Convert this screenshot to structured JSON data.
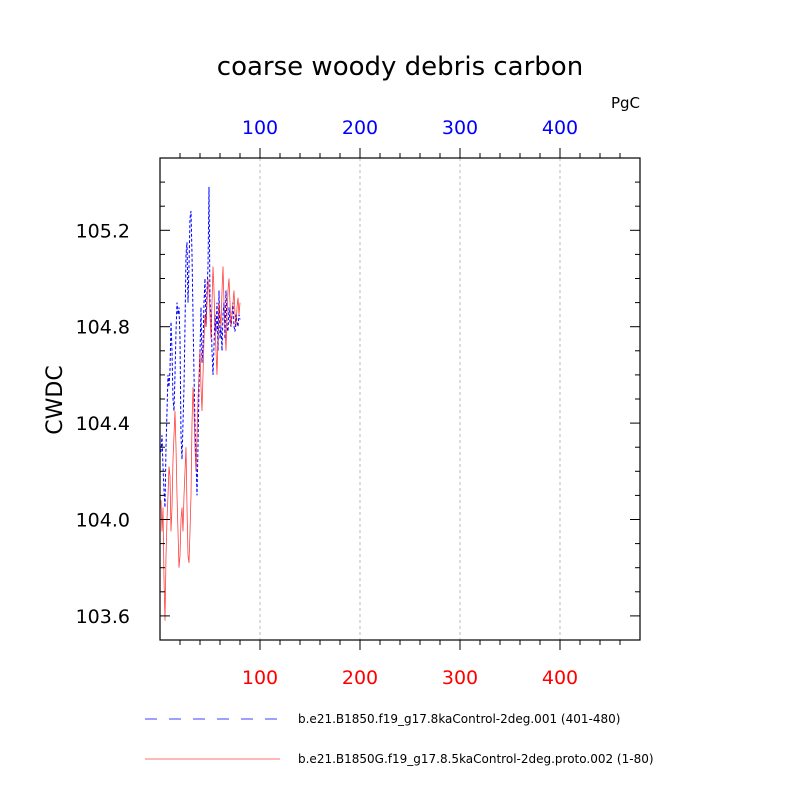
{
  "chart_data": {
    "type": "line",
    "title": "coarse woody debris carbon",
    "units": "PgC",
    "ylabel": "CWDC",
    "xlabel": "",
    "xlim": [
      0,
      480
    ],
    "ylim": [
      103.5,
      105.5
    ],
    "x_ticks": [
      100,
      200,
      300,
      400
    ],
    "x_tick_labels": [
      "100",
      "200",
      "300",
      "400"
    ],
    "y_ticks": [
      103.6,
      104.0,
      104.4,
      104.8,
      105.2
    ],
    "y_tick_labels": [
      "103.6",
      "104.0",
      "104.4",
      "104.8",
      "105.2"
    ],
    "grid": "vertical dashed at x ticks",
    "legend_position": "bottom",
    "series": [
      {
        "name": "b.e21.B1850.f19_g17.8kaControl-2deg.001 (401-480)",
        "color": "#0000ff",
        "dash": "dashed",
        "axis_color": "#0000ff",
        "x": [
          1,
          2,
          3,
          4,
          5,
          6,
          7,
          8,
          9,
          10,
          11,
          12,
          13,
          14,
          15,
          16,
          17,
          18,
          19,
          20,
          21,
          22,
          23,
          24,
          25,
          26,
          27,
          28,
          29,
          30,
          31,
          32,
          33,
          34,
          35,
          36,
          37,
          38,
          39,
          40,
          41,
          42,
          43,
          44,
          45,
          46,
          47,
          48,
          49,
          50,
          51,
          52,
          53,
          54,
          55,
          56,
          57,
          58,
          59,
          60,
          61,
          62,
          63,
          64,
          65,
          66,
          67,
          68,
          69,
          70,
          71,
          72,
          73,
          74,
          75,
          76,
          77,
          78,
          79,
          80
        ],
        "values": [
          104.28,
          104.35,
          104.22,
          104.12,
          104.05,
          104.3,
          104.45,
          104.6,
          104.55,
          104.62,
          104.82,
          104.7,
          104.5,
          104.45,
          104.6,
          104.78,
          104.9,
          104.85,
          104.88,
          104.75,
          104.35,
          104.25,
          104.4,
          104.55,
          104.8,
          105.1,
          105.15,
          104.9,
          105.05,
          105.25,
          105.28,
          105.1,
          104.85,
          104.6,
          104.4,
          104.25,
          104.1,
          104.3,
          104.55,
          104.7,
          104.88,
          104.65,
          104.72,
          104.9,
          105.0,
          104.8,
          104.95,
          105.05,
          105.38,
          104.9,
          104.85,
          104.7,
          104.6,
          104.72,
          104.85,
          104.78,
          104.9,
          104.7,
          104.95,
          104.75,
          104.8,
          104.7,
          104.85,
          104.9,
          104.75,
          104.95,
          104.8,
          104.78,
          104.88,
          104.82,
          104.8,
          104.85,
          104.9,
          104.8,
          104.78,
          104.85,
          104.82,
          104.8,
          104.85,
          104.83
        ]
      },
      {
        "name": "b.e21.B1850G.f19_g17.8.5kaControl-2deg.proto.002 (1-80)",
        "color": "#ff0000",
        "dash": "solid",
        "axis_color": "#ff0000",
        "x": [
          1,
          2,
          3,
          4,
          5,
          6,
          7,
          8,
          9,
          10,
          11,
          12,
          13,
          14,
          15,
          16,
          17,
          18,
          19,
          20,
          21,
          22,
          23,
          24,
          25,
          26,
          27,
          28,
          29,
          30,
          31,
          32,
          33,
          34,
          35,
          36,
          37,
          38,
          39,
          40,
          41,
          42,
          43,
          44,
          45,
          46,
          47,
          48,
          49,
          50,
          51,
          52,
          53,
          54,
          55,
          56,
          57,
          58,
          59,
          60,
          61,
          62,
          63,
          64,
          65,
          66,
          67,
          68,
          69,
          70,
          71,
          72,
          73,
          74,
          75,
          76,
          77,
          78,
          79,
          80
        ],
        "values": [
          104.08,
          103.95,
          104.05,
          103.75,
          103.58,
          103.85,
          104.0,
          104.1,
          104.22,
          104.18,
          103.95,
          104.05,
          104.25,
          104.35,
          104.45,
          104.3,
          104.1,
          103.95,
          103.8,
          103.85,
          104.0,
          104.05,
          103.95,
          104.1,
          104.2,
          104.3,
          104.05,
          103.85,
          103.82,
          103.95,
          104.1,
          104.4,
          104.55,
          104.45,
          104.3,
          104.2,
          104.35,
          104.5,
          104.6,
          104.7,
          104.55,
          104.45,
          104.6,
          104.75,
          104.85,
          104.8,
          104.9,
          105.0,
          104.95,
          104.85,
          104.75,
          104.9,
          105.05,
          104.95,
          104.8,
          104.7,
          104.6,
          104.75,
          104.9,
          104.85,
          104.8,
          104.95,
          105.05,
          104.9,
          104.8,
          104.7,
          104.85,
          104.95,
          105.0,
          104.9,
          104.8,
          104.85,
          104.9,
          104.95,
          104.85,
          104.8,
          104.88,
          104.92,
          104.85,
          104.9
        ]
      }
    ]
  }
}
